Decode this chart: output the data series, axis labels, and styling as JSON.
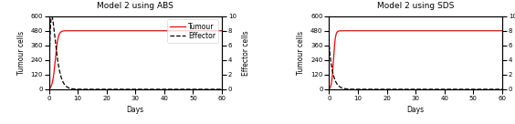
{
  "title_left": "Model 2 using ABS",
  "title_right": "Model 2 using SDS",
  "xlabel": "Days",
  "ylabel_left": "Tumour cells",
  "ylabel_right": "Effector cells",
  "xlim": [
    0,
    60
  ],
  "ylim_tumour": [
    0,
    600
  ],
  "ylim_effector": [
    0,
    10
  ],
  "yticks_tumour": [
    0,
    120,
    240,
    360,
    480,
    600
  ],
  "yticks_effector": [
    0,
    2,
    4,
    6,
    8,
    10
  ],
  "xticks": [
    0,
    10,
    20,
    30,
    40,
    50,
    60
  ],
  "tumour_color": "#ff0000",
  "effector_color": "#000000",
  "tumour_linewidth": 0.9,
  "effector_linewidth": 0.9,
  "legend_labels": [
    "Tumour",
    "Effector"
  ],
  "figsize": [
    5.64,
    1.36
  ],
  "dpi": 100,
  "title_fontsize": 6.5,
  "label_fontsize": 5.5,
  "tick_fontsize": 5.0,
  "legend_fontsize": 5.5
}
